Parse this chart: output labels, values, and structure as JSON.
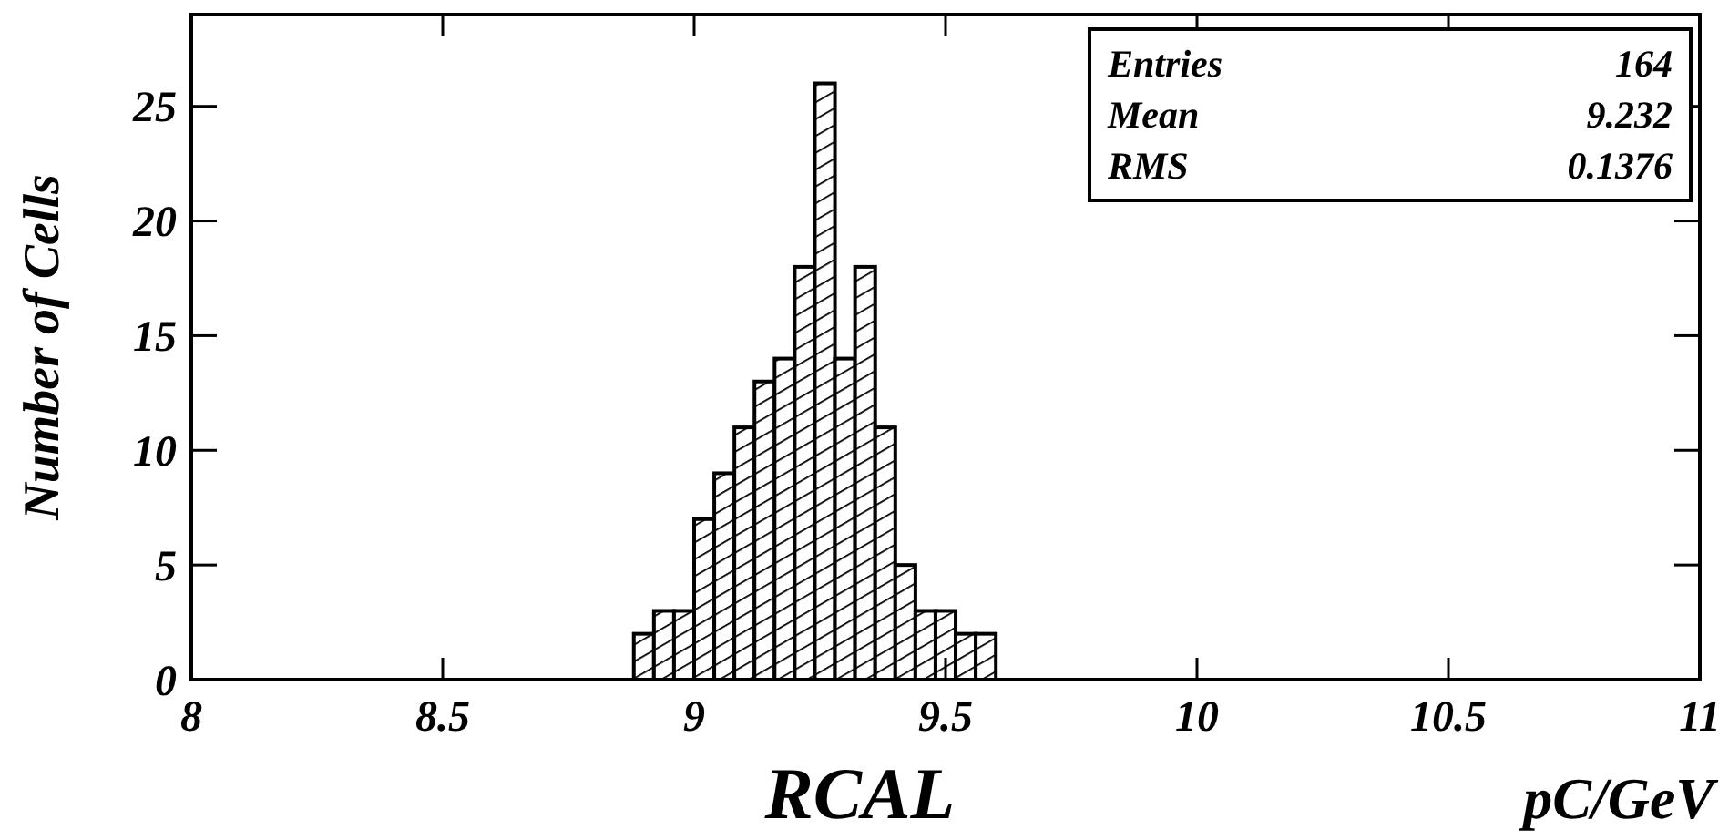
{
  "chart_data": {
    "type": "histogram",
    "bins": [
      8.88,
      8.92,
      8.96,
      9.0,
      9.04,
      9.08,
      9.12,
      9.16,
      9.2,
      9.24,
      9.28,
      9.32,
      9.36,
      9.4,
      9.44,
      9.48,
      9.52,
      9.56,
      9.6
    ],
    "values": [
      2,
      3,
      3,
      7,
      9,
      11,
      13,
      14,
      18,
      26,
      14,
      18,
      11,
      5,
      3,
      3,
      2,
      2
    ],
    "color": "#000000",
    "xlim": [
      8,
      11
    ],
    "xticks": [
      8,
      8.5,
      9,
      9.5,
      10,
      10.5,
      11
    ],
    "ylim": [
      0,
      29
    ],
    "yticks": [
      0,
      5,
      10,
      15,
      20,
      25
    ],
    "xlabel": "RCAL",
    "ylabel": "Number of Cells",
    "annotations": [
      "pC/GeV",
      "Entries",
      "164",
      "Mean",
      "9.232",
      "RMS",
      "0.1376"
    ],
    "grid": false
  }
}
